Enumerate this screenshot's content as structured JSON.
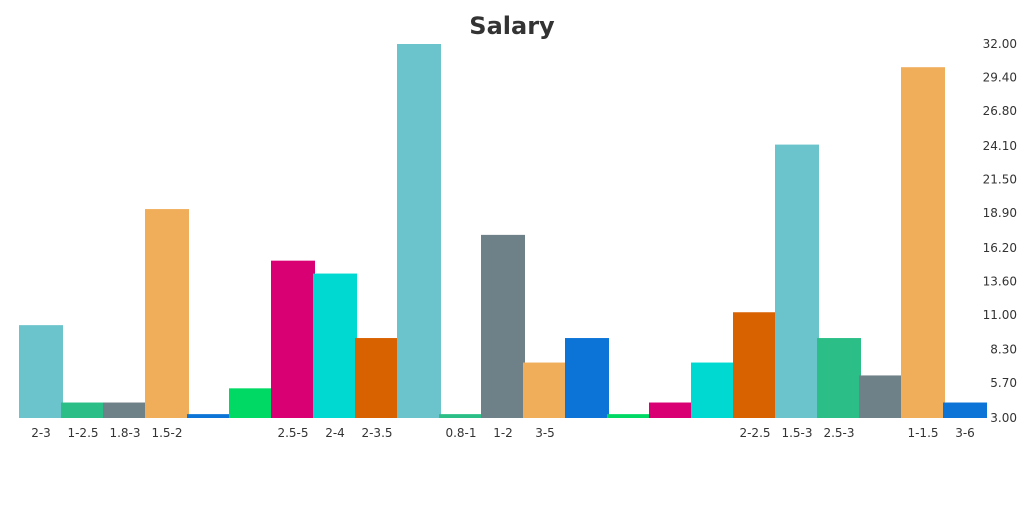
{
  "chart_data": {
    "type": "bar",
    "title": "Salary",
    "xlabel": "",
    "ylabel": "",
    "ylim": [
      3.0,
      32.0
    ],
    "y_axis_position": "right",
    "yticks": [
      "32.00",
      "29.40",
      "26.80",
      "24.10",
      "21.50",
      "18.90",
      "16.20",
      "13.60",
      "11.00",
      "8.30",
      "5.70",
      "3.00"
    ],
    "grid": false,
    "legend": "none",
    "bars": [
      {
        "label": "2-3",
        "value": 10.2,
        "color": "#6bc4cb"
      },
      {
        "label": "1-2.5",
        "value": 4.2,
        "color": "#2bbf87"
      },
      {
        "label": "1.8-3",
        "value": 4.2,
        "color": "#6e8088"
      },
      {
        "label": "1.5-2",
        "value": 19.2,
        "color": "#f0ad5a"
      },
      {
        "label": "",
        "value": 3.3,
        "color": "#0b74d6"
      },
      {
        "label": "",
        "value": 5.3,
        "color": "#00d964"
      },
      {
        "label": "2.5-5",
        "value": 15.2,
        "color": "#d80073"
      },
      {
        "label": "2-4",
        "value": 14.2,
        "color": "#00d9d1"
      },
      {
        "label": "2-3.5",
        "value": 9.2,
        "color": "#d96200"
      },
      {
        "label": "",
        "value": 32.0,
        "color": "#6bc4cb"
      },
      {
        "label": "0.8-1",
        "value": 3.3,
        "color": "#2bbf87"
      },
      {
        "label": "1-2",
        "value": 17.2,
        "color": "#6e8088"
      },
      {
        "label": "3-5",
        "value": 7.3,
        "color": "#f0ad5a"
      },
      {
        "label": "",
        "value": 9.2,
        "color": "#0b74d6"
      },
      {
        "label": "",
        "value": 3.3,
        "color": "#00d964"
      },
      {
        "label": "",
        "value": 4.2,
        "color": "#d80073"
      },
      {
        "label": "",
        "value": 7.3,
        "color": "#00d9d1"
      },
      {
        "label": "2-2.5",
        "value": 11.2,
        "color": "#d96200"
      },
      {
        "label": "1.5-3",
        "value": 24.2,
        "color": "#6bc4cb"
      },
      {
        "label": "2.5-3",
        "value": 9.2,
        "color": "#2bbf87"
      },
      {
        "label": "",
        "value": 6.3,
        "color": "#6e8088"
      },
      {
        "label": "1-1.5",
        "value": 30.2,
        "color": "#f0ad5a"
      },
      {
        "label": "3-6",
        "value": 4.2,
        "color": "#0b74d6"
      }
    ]
  }
}
